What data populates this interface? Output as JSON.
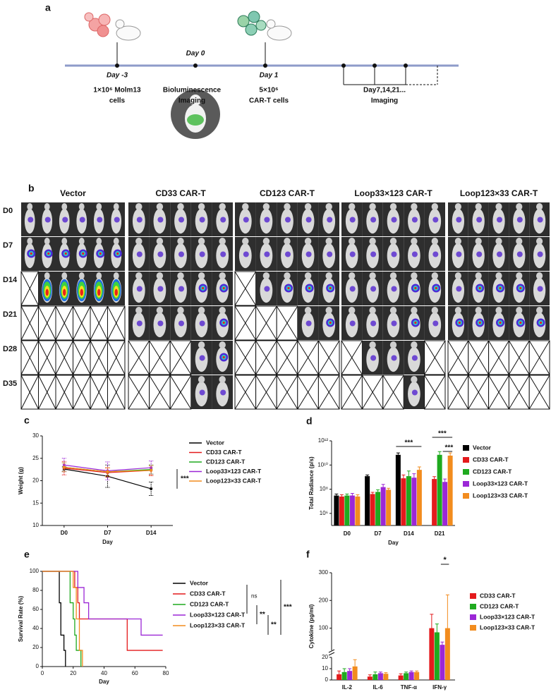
{
  "panel_a": {
    "label": "a",
    "steps": [
      {
        "day": "Day -3",
        "desc": [
          "1×10⁶ Molm13",
          "cells"
        ]
      },
      {
        "day": "Day 0",
        "desc": [
          "Bioluminescence",
          "Imaging"
        ]
      },
      {
        "day": "Day 1",
        "desc": [
          "5×10⁶",
          "CAR-T cells"
        ]
      }
    ],
    "imaging": [
      "Day7,14,21...",
      "Imaging"
    ]
  },
  "panel_b": {
    "label": "b",
    "groups": [
      "Vector",
      "CD33 CAR-T",
      "CD123 CAR-T",
      "Loop33×123 CAR-T",
      "Loop123×33 CAR-T"
    ],
    "rows": [
      "D0",
      "D7",
      "D14",
      "D21",
      "D28",
      "D35"
    ]
  },
  "chart_data": [
    {
      "type": "line",
      "label": "c",
      "x_label": "Day",
      "y_label": "Weight (g)",
      "categories": [
        "D0",
        "D7",
        "D14"
      ],
      "ylim": [
        10,
        30
      ],
      "yticks": [
        10,
        15,
        20,
        25,
        30
      ],
      "series": [
        {
          "name": "Vector",
          "color": "#000000",
          "values": [
            22.6,
            21.0,
            18.2
          ],
          "errors": [
            0.5,
            2.5,
            1.5
          ]
        },
        {
          "name": "CD33 CAR-T",
          "color": "#e41a1c",
          "values": [
            22.8,
            21.8,
            22.3
          ],
          "errors": [
            1.5,
            1.0,
            1.2
          ]
        },
        {
          "name": "CD123 CAR-T",
          "color": "#1faa1f",
          "values": [
            23.0,
            22.0,
            22.5
          ],
          "errors": [
            1.0,
            1.0,
            1.0
          ]
        },
        {
          "name": "Loop33×123 CAR-T",
          "color": "#9b27d6",
          "values": [
            23.5,
            22.2,
            22.9
          ],
          "errors": [
            1.5,
            2.0,
            1.5
          ]
        },
        {
          "name": "Loop123×33 CAR-T",
          "color": "#f28c1e",
          "values": [
            23.0,
            22.0,
            22.3
          ],
          "errors": [
            1.0,
            1.0,
            1.0
          ]
        }
      ],
      "annotations": [
        "***"
      ]
    },
    {
      "type": "bar",
      "label": "d",
      "x_label": "Day",
      "y_label": "Total Radiance (p/s)",
      "log_scale": true,
      "categories": [
        "D0",
        "D7",
        "D14",
        "D21"
      ],
      "ylim": [
        100000.0,
        1000000000000.0
      ],
      "yticks": [
        {
          "value": 1000000.0,
          "label": "10⁶"
        },
        {
          "value": 100000000.0,
          "label": "10⁸"
        },
        {
          "value": 10000000000.0,
          "label": "10¹⁰"
        },
        {
          "value": 1000000000000.0,
          "label": "10¹²"
        }
      ],
      "series": [
        {
          "name": "Vector",
          "color": "#000000",
          "values": [
            30000000.0,
            1200000000.0,
            70000000000.0,
            null
          ],
          "errors": [
            10000000.0,
            300000000.0,
            30000000000.0,
            null
          ]
        },
        {
          "name": "CD33 CAR-T",
          "color": "#e41a1c",
          "values": [
            25000000.0,
            40000000.0,
            800000000.0,
            700000000.0
          ],
          "errors": [
            10000000.0,
            15000000.0,
            700000000.0,
            400000000.0
          ]
        },
        {
          "name": "CD123 CAR-T",
          "color": "#1faa1f",
          "values": [
            30000000.0,
            60000000.0,
            1200000000.0,
            70000000000.0
          ],
          "errors": [
            10000000.0,
            30000000.0,
            2000000000.0,
            60000000000.0
          ]
        },
        {
          "name": "Loop33×123 CAR-T",
          "color": "#9b27d6",
          "values": [
            30000000.0,
            150000000.0,
            900000000.0,
            400000000.0
          ],
          "errors": [
            15000000.0,
            100000000.0,
            1000000000.0,
            300000000.0
          ]
        },
        {
          "name": "Loop123×33 CAR-T",
          "color": "#f28c1e",
          "values": [
            25000000.0,
            90000000.0,
            4000000000.0,
            60000000000.0
          ],
          "errors": [
            10000000.0,
            30000000.0,
            3000000000.0,
            40000000000.0
          ]
        }
      ],
      "annotations": [
        "***",
        "***",
        "***"
      ]
    },
    {
      "type": "step",
      "label": "e",
      "x_label": "Day",
      "y_label": "Survival Rate (%)",
      "xlim": [
        0,
        80
      ],
      "xticks": [
        0,
        20,
        40,
        60,
        80
      ],
      "ylim": [
        0,
        100
      ],
      "yticks": [
        0,
        20,
        40,
        60,
        80,
        100
      ],
      "series": [
        {
          "name": "Vector",
          "color": "#000000",
          "x": [
            0,
            11,
            11,
            12,
            12,
            14,
            14,
            15,
            15
          ],
          "values": [
            100,
            100,
            67,
            67,
            33,
            33,
            17,
            17,
            0
          ]
        },
        {
          "name": "CD33 CAR-T",
          "color": "#e41a1c",
          "x": [
            0,
            21,
            21,
            23,
            23,
            24,
            24,
            55,
            55,
            78
          ],
          "values": [
            100,
            100,
            83,
            83,
            67,
            67,
            50,
            50,
            17,
            17
          ]
        },
        {
          "name": "CD123 CAR-T",
          "color": "#1faa1f",
          "x": [
            0,
            18,
            18,
            20,
            20,
            21,
            21,
            22,
            22,
            25,
            25
          ],
          "values": [
            100,
            100,
            67,
            67,
            50,
            50,
            33,
            33,
            17,
            17,
            0
          ]
        },
        {
          "name": "Loop33×123 CAR-T",
          "color": "#9b27d6",
          "x": [
            0,
            23,
            23,
            27,
            27,
            30,
            30,
            64,
            64,
            78
          ],
          "values": [
            100,
            100,
            83,
            83,
            67,
            67,
            50,
            50,
            33,
            33
          ]
        },
        {
          "name": "Loop123×33 CAR-T",
          "color": "#f28c1e",
          "x": [
            0,
            20,
            20,
            22,
            22,
            24,
            24,
            26,
            26
          ],
          "values": [
            100,
            100,
            83,
            83,
            50,
            50,
            17,
            17,
            0
          ]
        }
      ],
      "annotations": [
        "ns",
        "**",
        "**",
        "***"
      ]
    },
    {
      "type": "broken_bar",
      "label": "f",
      "y_label": "Cytokine (pg/ml)",
      "categories": [
        "IL-2",
        "IL-6",
        "TNF-α",
        "IFN-γ"
      ],
      "y_segments": [
        {
          "ylim": [
            0,
            20
          ],
          "yticks": [
            0,
            10,
            20
          ]
        },
        {
          "ylim": [
            20,
            300
          ],
          "yticks": [
            100,
            200,
            300
          ]
        }
      ],
      "series": [
        {
          "name": "CD33 CAR-T",
          "color": "#e41a1c",
          "values": [
            5,
            3,
            4,
            100
          ],
          "errors": [
            3,
            1.5,
            1.5,
            50
          ]
        },
        {
          "name": "CD123 CAR-T",
          "color": "#1faa1f",
          "values": [
            7,
            5,
            6,
            85
          ],
          "errors": [
            3,
            2,
            1,
            30
          ]
        },
        {
          "name": "Loop33×123 CAR-T",
          "color": "#9b27d6",
          "values": [
            8,
            6,
            7,
            40
          ],
          "errors": [
            2,
            1,
            1,
            10
          ]
        },
        {
          "name": "Loop123×33 CAR-T",
          "color": "#f28c1e",
          "values": [
            12,
            5.5,
            7,
            100
          ],
          "errors": [
            6,
            1,
            1,
            120
          ]
        }
      ],
      "annotations": [
        "*"
      ]
    }
  ]
}
